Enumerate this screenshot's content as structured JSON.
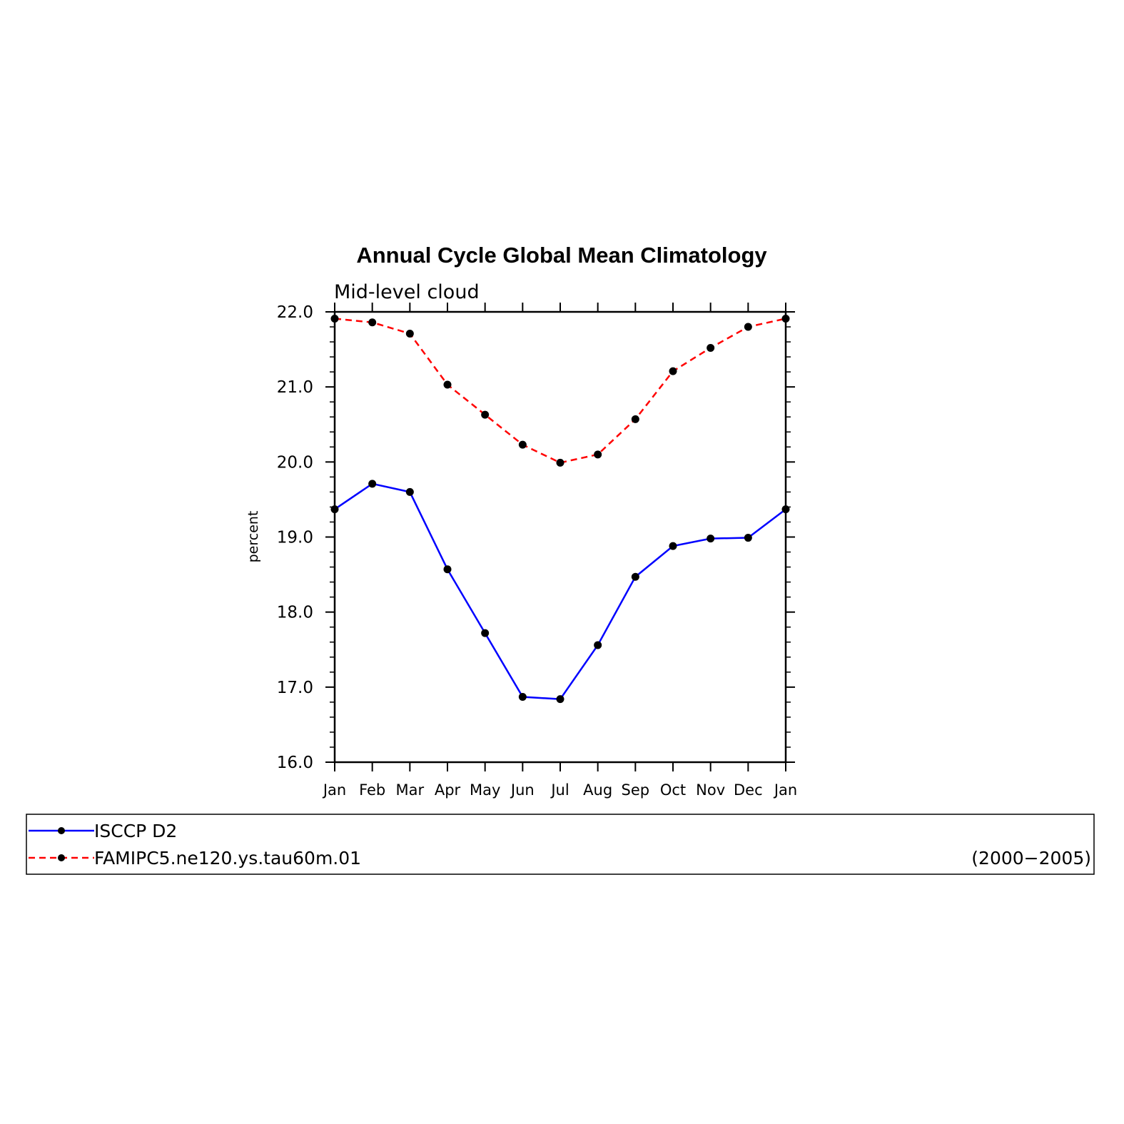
{
  "chart_data": {
    "type": "line",
    "title": "Annual Cycle Global Mean Climatology",
    "subtitle": "Mid-level cloud",
    "ylabel": "percent",
    "xlabel": "",
    "categories": [
      "Jan",
      "Feb",
      "Mar",
      "Apr",
      "May",
      "Jun",
      "Jul",
      "Aug",
      "Sep",
      "Oct",
      "Nov",
      "Dec",
      "Jan"
    ],
    "ylim": [
      16.0,
      22.0
    ],
    "yticks": [
      "16.0",
      "17.0",
      "18.0",
      "19.0",
      "20.0",
      "21.0",
      "22.0"
    ],
    "grid": false,
    "series": [
      {
        "name": "ISCCP D2",
        "color": "#0000ff",
        "dash": "solid",
        "marker": "dot",
        "values": [
          19.37,
          19.71,
          19.6,
          18.57,
          17.72,
          16.87,
          16.84,
          17.56,
          18.47,
          18.88,
          18.98,
          18.99,
          19.37
        ]
      },
      {
        "name": "FAMIPC5.ne120.ys.tau60m.01",
        "color": "#ff0000",
        "dash": "dashed",
        "marker": "dot",
        "values": [
          21.91,
          21.86,
          21.71,
          21.03,
          20.63,
          20.23,
          19.99,
          20.1,
          20.57,
          21.21,
          21.52,
          21.8,
          21.91
        ]
      }
    ],
    "legend": {
      "placement": "bottom",
      "period": "(2000−2005)"
    }
  }
}
